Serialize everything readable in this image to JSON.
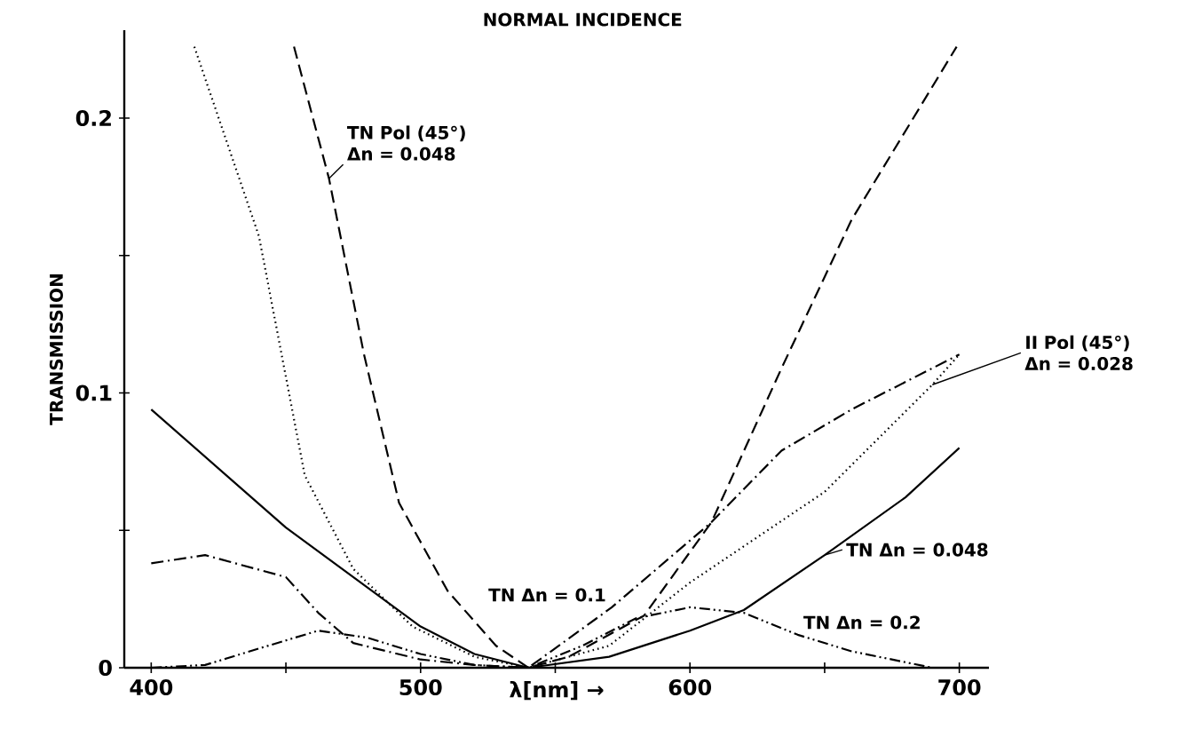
{
  "chart_data": {
    "type": "line",
    "title": "NORMAL INCIDENCE",
    "xlabel": "λ[nm] →",
    "ylabel": "TRANSMISSION",
    "xlim": [
      390,
      711
    ],
    "ylim": [
      0,
      0.232
    ],
    "xticks": [
      400,
      {
        "value": 450,
        "label": null
      },
      500,
      {
        "value": 550,
        "label": null
      },
      600,
      {
        "value": 650,
        "label": null
      },
      700
    ],
    "yticks": [
      0,
      {
        "value": 0.05,
        "label": null
      },
      0.1,
      {
        "value": 0.15,
        "label": null
      },
      0.2
    ],
    "series": [
      {
        "name": "TN Pol (45°) Δn = 0.048",
        "color": "#000000",
        "line_style": "dashed",
        "x": [
          453,
          466,
          479,
          492,
          510,
          528,
          540,
          555,
          583,
          608,
          634,
          660,
          699
        ],
        "values": [
          0.226,
          0.178,
          0.114,
          0.06,
          0.028,
          0.008,
          0,
          0.004,
          0.019,
          0.053,
          0.109,
          0.163,
          0.226
        ]
      },
      {
        "name": "II Pol (45°) Δn = 0.028",
        "color": "#000000",
        "line_style": "dotted",
        "x": [
          416,
          440,
          457,
          475,
          497,
          520,
          540,
          570,
          600,
          650,
          690,
          700
        ],
        "values": [
          0.226,
          0.157,
          0.07,
          0.036,
          0.015,
          0.004,
          0,
          0.008,
          0.031,
          0.064,
          0.103,
          0.114
        ]
      },
      {
        "name": "TN Δn = 0.048",
        "color": "#000000",
        "line_style": "solid",
        "x": [
          400,
          450,
          500,
          520,
          540,
          570,
          600,
          620,
          650,
          680,
          700
        ],
        "values": [
          0.094,
          0.051,
          0.015,
          0.005,
          0,
          0.004,
          0.0135,
          0.021,
          0.041,
          0.062,
          0.08
        ]
      },
      {
        "name": "TN Δn = 0.1",
        "color": "#000000",
        "line_style": "dashdot",
        "x": [
          400,
          420,
          450,
          462,
          475,
          500,
          520,
          540,
          571,
          608,
          634,
          660,
          700
        ],
        "values": [
          0.038,
          0.041,
          0.033,
          0.02,
          0.009,
          0.003,
          0.001,
          0,
          0.022,
          0.053,
          0.079,
          0.094,
          0.114
        ]
      },
      {
        "name": "TN Δn = 0.2",
        "color": "#000000",
        "line_style": "dashdotdot",
        "x": [
          400,
          420,
          440,
          462,
          480,
          500,
          520,
          540,
          560,
          580,
          600,
          620,
          640,
          660,
          680,
          690
        ],
        "values": [
          0,
          0.001,
          0.007,
          0.0135,
          0.011,
          0.005,
          0.001,
          0,
          0.008,
          0.018,
          0.022,
          0.02,
          0.012,
          0.006,
          0.002,
          0
        ]
      }
    ]
  }
}
